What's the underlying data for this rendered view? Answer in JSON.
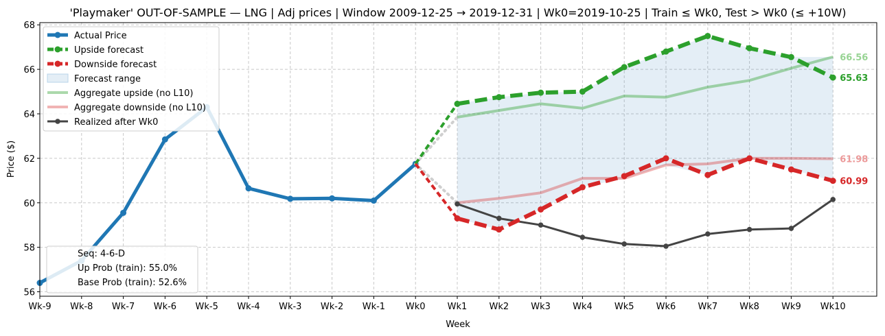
{
  "chart_data": {
    "type": "line",
    "title": "'Playmaker' OUT-OF-SAMPLE — LNG  |  Adj prices  |  Window 2009-12-25 → 2019-12-31  |  Wk0=2019-10-25  |  Train ≤ Wk0, Test > Wk0 (≤ +10W)",
    "xlabel": "Week",
    "ylabel": "Price ($)",
    "ylim": [
      55.8,
      68.1
    ],
    "yticks": [
      56,
      58,
      60,
      62,
      64,
      66,
      68
    ],
    "categories": [
      "Wk-9",
      "Wk-8",
      "Wk-7",
      "Wk-6",
      "Wk-5",
      "Wk-4",
      "Wk-3",
      "Wk-2",
      "Wk-1",
      "Wk0",
      "Wk1",
      "Wk2",
      "Wk3",
      "Wk4",
      "Wk5",
      "Wk6",
      "Wk7",
      "Wk8",
      "Wk9",
      "Wk10"
    ],
    "grid": true,
    "legend_position": "top-left",
    "series": [
      {
        "name": "Actual Price",
        "color": "#1f77b4",
        "x": [
          "Wk-9",
          "Wk-8",
          "Wk-7",
          "Wk-6",
          "Wk-5",
          "Wk-4",
          "Wk-3",
          "Wk-2",
          "Wk-1",
          "Wk0"
        ],
        "values": [
          56.4,
          57.4,
          59.55,
          62.85,
          64.3,
          60.65,
          60.18,
          60.2,
          60.1,
          61.75
        ]
      },
      {
        "name": "Upside forecast",
        "color": "#2ca02c",
        "x": [
          "Wk1",
          "Wk2",
          "Wk3",
          "Wk4",
          "Wk5",
          "Wk6",
          "Wk7",
          "Wk8",
          "Wk9",
          "Wk10"
        ],
        "values": [
          64.45,
          64.75,
          64.95,
          65.0,
          66.1,
          66.8,
          67.5,
          66.95,
          66.55,
          65.63
        ]
      },
      {
        "name": "Downside forecast",
        "color": "#d62728",
        "x": [
          "Wk1",
          "Wk2",
          "Wk3",
          "Wk4",
          "Wk5",
          "Wk6",
          "Wk7",
          "Wk8",
          "Wk9",
          "Wk10"
        ],
        "values": [
          59.3,
          58.8,
          59.7,
          60.7,
          61.2,
          62.0,
          61.25,
          62.0,
          61.5,
          60.99
        ]
      },
      {
        "name": "Forecast range",
        "color": "#1f77b4"
      },
      {
        "name": "Aggregate upside (no L10)",
        "color": "#2ca02c",
        "x": [
          "Wk1",
          "Wk2",
          "Wk3",
          "Wk4",
          "Wk5",
          "Wk6",
          "Wk7",
          "Wk8",
          "Wk9",
          "Wk10"
        ],
        "values": [
          63.85,
          64.15,
          64.45,
          64.25,
          64.8,
          64.75,
          65.2,
          65.5,
          66.05,
          66.56
        ]
      },
      {
        "name": "Aggregate downside (no L10)",
        "color": "#d62728",
        "x": [
          "Wk1",
          "Wk2",
          "Wk3",
          "Wk4",
          "Wk5",
          "Wk6",
          "Wk7",
          "Wk8",
          "Wk9",
          "Wk10"
        ],
        "values": [
          60.0,
          60.2,
          60.45,
          61.1,
          61.1,
          61.7,
          61.75,
          62.0,
          62.0,
          61.98
        ]
      },
      {
        "name": "Realized after Wk0",
        "color": "#444444",
        "x": [
          "Wk1",
          "Wk2",
          "Wk3",
          "Wk4",
          "Wk5",
          "Wk6",
          "Wk7",
          "Wk8",
          "Wk9",
          "Wk10"
        ],
        "values": [
          59.95,
          59.3,
          59.0,
          58.45,
          58.15,
          58.05,
          58.6,
          58.8,
          58.85,
          60.15
        ]
      }
    ],
    "end_labels": [
      {
        "text": "66.56",
        "value": 66.56,
        "color": "#98d494"
      },
      {
        "text": "65.63",
        "value": 65.63,
        "color": "#2ca02c"
      },
      {
        "text": "61.98",
        "value": 61.98,
        "color": "#ec9a9a"
      },
      {
        "text": "60.99",
        "value": 60.99,
        "color": "#d62728"
      }
    ],
    "annotation": {
      "lines": [
        "Seq: 4-6-D",
        "Up Prob (train): 55.0%",
        "Base Prob (train): 52.6%"
      ],
      "position": "bottom-left"
    }
  }
}
